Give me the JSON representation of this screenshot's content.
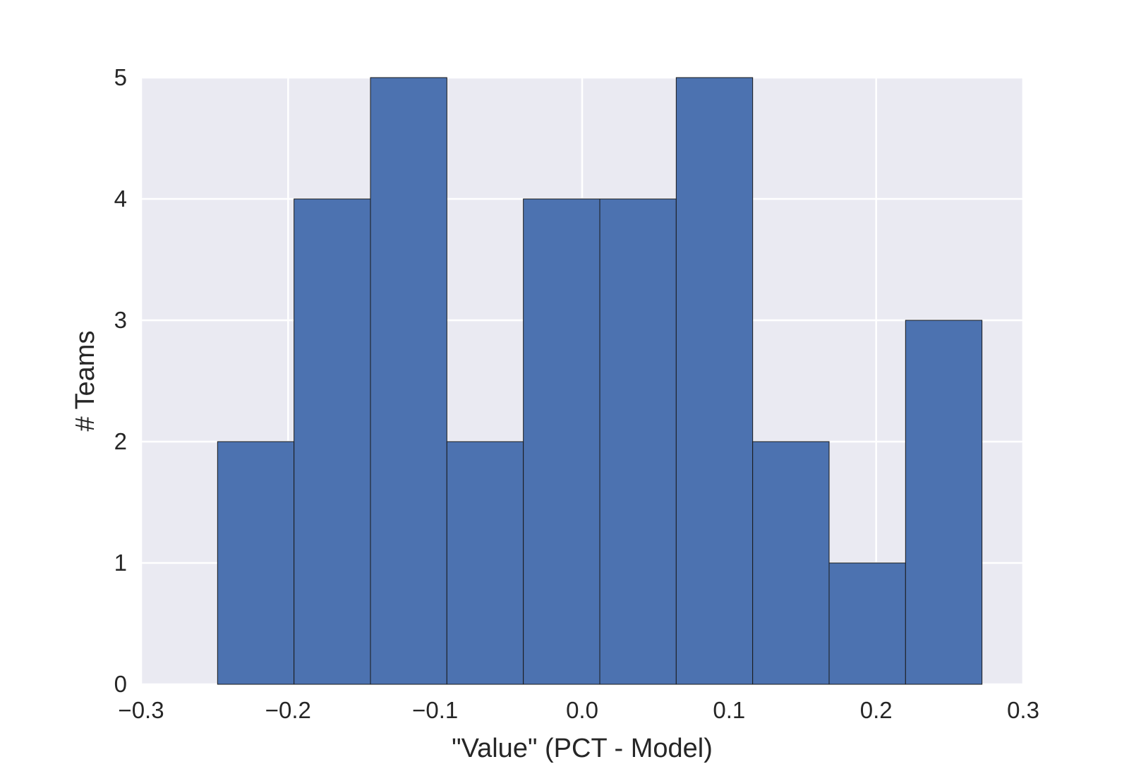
{
  "chart_data": {
    "type": "bar",
    "subtype": "histogram",
    "title": "",
    "xlabel": "\"Value\" (PCT - Model)",
    "ylabel": "# Teams",
    "xlim": [
      -0.3,
      0.3
    ],
    "ylim": [
      0,
      5
    ],
    "grid": true,
    "legend": "none",
    "bin_edges": [
      -0.248,
      -0.196,
      -0.144,
      -0.092,
      -0.04,
      0.012,
      0.064,
      0.116,
      0.168,
      0.22,
      0.272
    ],
    "values": [
      2,
      4,
      5,
      2,
      4,
      4,
      5,
      2,
      1,
      3
    ],
    "x_ticks": [
      -0.3,
      -0.2,
      -0.1,
      0.0,
      0.1,
      0.2,
      0.3
    ],
    "x_tick_labels": [
      "−0.3",
      "−0.2",
      "−0.1",
      "0.0",
      "0.1",
      "0.2",
      "0.3"
    ],
    "y_ticks": [
      0,
      1,
      2,
      3,
      4,
      5
    ],
    "y_tick_labels": [
      "0",
      "1",
      "2",
      "3",
      "4",
      "5"
    ],
    "colors": {
      "bar": "#4c72b0",
      "bar_edge": "#1a1a1a",
      "plot_background": "#eaeaf2",
      "grid": "#ffffff",
      "text": "#262626"
    }
  }
}
